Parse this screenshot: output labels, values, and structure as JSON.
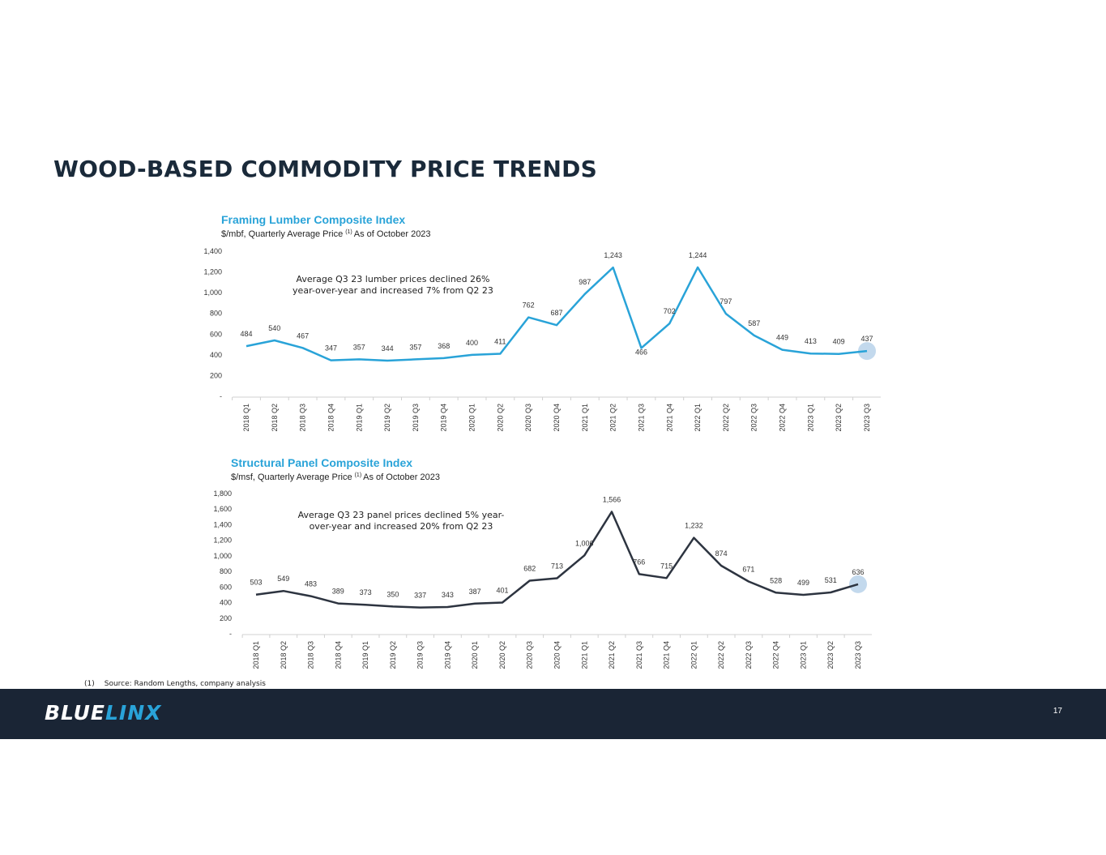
{
  "page": {
    "title": "WOOD-BASED COMMODITY PRICE TRENDS",
    "footnote_number": "(1)",
    "footnote_text": "Source:  Random Lengths, company analysis",
    "logo_part1": "BLUE",
    "logo_part2": "LINX",
    "page_number": "17"
  },
  "colors": {
    "lumber_line": "#29a3d8",
    "panel_line": "#2d3440",
    "highlight": "#b9d2ea",
    "title_accent": "#29a3d8",
    "footer_bg": "#1a2535"
  },
  "chart_data": [
    {
      "type": "line",
      "title": "Framing Lumber Composite Index",
      "subtitle": "$/mbf, Quarterly Average Price",
      "subtitle_note": "(1)",
      "subtitle_suffix": "As of October 2023",
      "annotation_line1": "Average Q3 23 lumber prices declined 26%",
      "annotation_line2": "year-over-year and increased 7% from Q2 23",
      "categories": [
        "2018 Q1",
        "2018 Q2",
        "2018 Q3",
        "2018 Q4",
        "2019 Q1",
        "2019 Q2",
        "2019 Q3",
        "2019 Q4",
        "2020 Q1",
        "2020 Q2",
        "2020 Q3",
        "2020 Q4",
        "2021 Q1",
        "2021 Q2",
        "2021 Q3",
        "2021 Q4",
        "2022 Q1",
        "2022 Q2",
        "2022 Q3",
        "2022 Q4",
        "2023 Q1",
        "2023 Q2",
        "2023 Q3"
      ],
      "values": [
        484,
        540,
        467,
        347,
        357,
        344,
        357,
        368,
        400,
        411,
        762,
        687,
        987,
        1243,
        466,
        702,
        1244,
        797,
        587,
        449,
        413,
        409,
        437
      ],
      "labels": [
        "484",
        "540",
        "467",
        "347",
        "357",
        "344",
        "357",
        "368",
        "400",
        "411",
        "762",
        "687",
        "987",
        "1,243",
        "466",
        "702",
        "1,244",
        "797",
        "587",
        "449",
        "413",
        "409",
        "437"
      ],
      "yticks": [
        "-",
        "200",
        "400",
        "600",
        "800",
        "1,000",
        "1,200",
        "1,400"
      ],
      "ylim": [
        0,
        1400
      ],
      "highlight_last": true
    },
    {
      "type": "line",
      "title": "Structural Panel Composite Index",
      "subtitle": "$/msf, Quarterly Average Price",
      "subtitle_note": "(1)",
      "subtitle_suffix": "As of October 2023",
      "annotation_line1": "Average Q3 23 panel prices declined 5% year-",
      "annotation_line2": "over-year and increased 20% from Q2 23",
      "categories": [
        "2018 Q1",
        "2018 Q2",
        "2018 Q3",
        "2018 Q4",
        "2019 Q1",
        "2019 Q2",
        "2019 Q3",
        "2019 Q4",
        "2020 Q1",
        "2020 Q2",
        "2020 Q3",
        "2020 Q4",
        "2021 Q1",
        "2021 Q2",
        "2021 Q3",
        "2021 Q4",
        "2022 Q1",
        "2022 Q2",
        "2022 Q3",
        "2022 Q4",
        "2023 Q1",
        "2023 Q2",
        "2023 Q3"
      ],
      "values": [
        503,
        549,
        483,
        389,
        373,
        350,
        337,
        343,
        387,
        401,
        682,
        713,
        1006,
        1566,
        766,
        715,
        1232,
        874,
        671,
        528,
        499,
        531,
        636
      ],
      "labels": [
        "503",
        "549",
        "483",
        "389",
        "373",
        "350",
        "337",
        "343",
        "387",
        "401",
        "682",
        "713",
        "1,006",
        "1,566",
        "766",
        "715",
        "1,232",
        "874",
        "671",
        "528",
        "499",
        "531",
        "636"
      ],
      "yticks": [
        "-",
        "200",
        "400",
        "600",
        "800",
        "1,000",
        "1,200",
        "1,400",
        "1,600",
        "1,800"
      ],
      "ylim": [
        0,
        1800
      ],
      "highlight_last": true
    }
  ]
}
